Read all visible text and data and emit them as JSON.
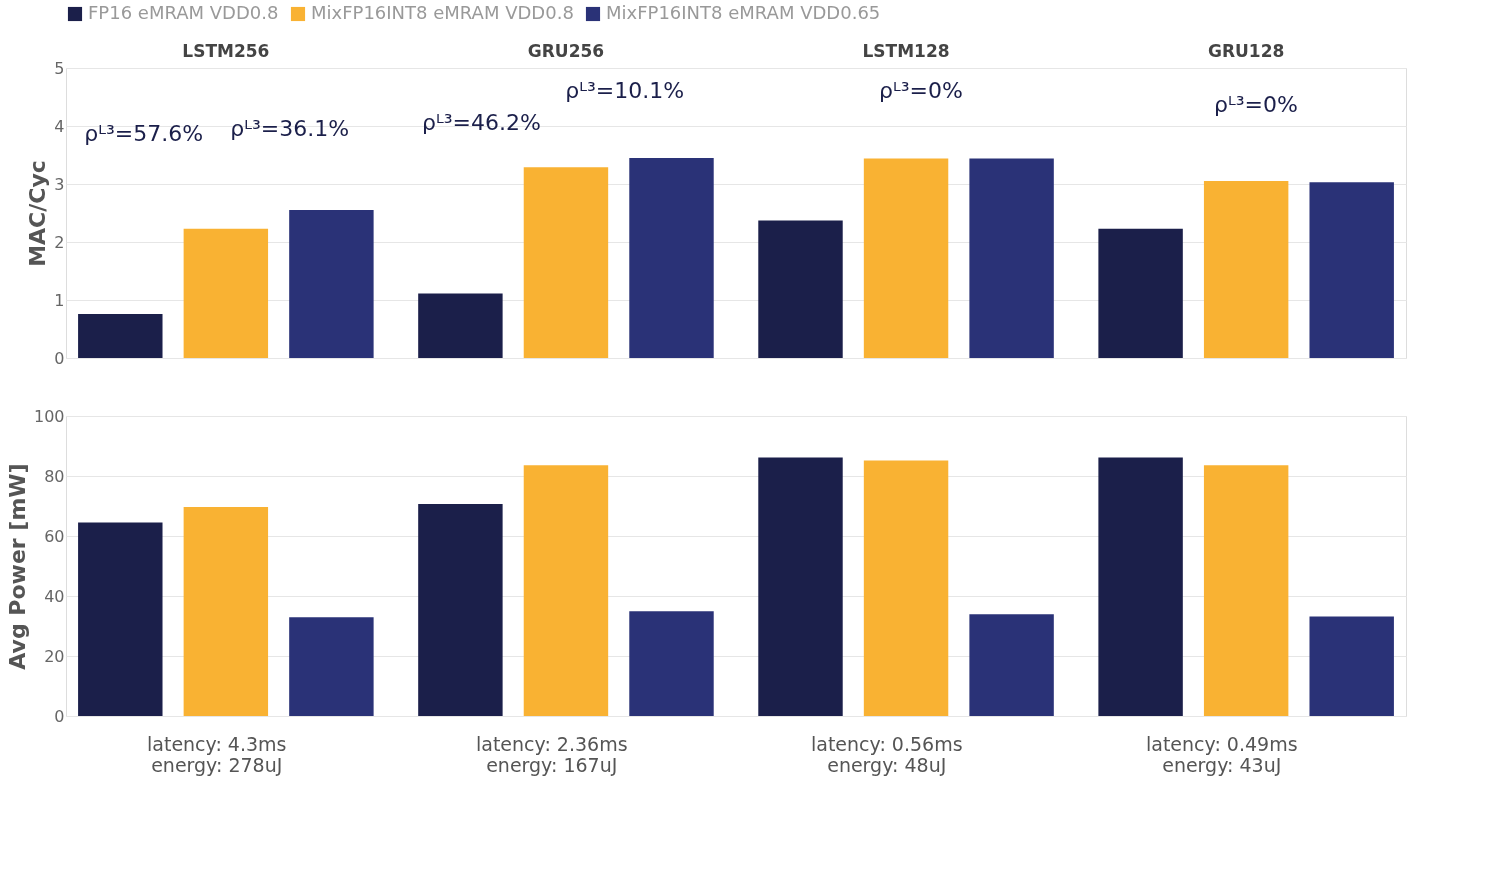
{
  "chart_data": [
    {
      "type": "bar",
      "ylabel": "MAC/Cyc",
      "categories": [
        "LSTM256",
        "GRU256",
        "LSTM128",
        "GRU128"
      ],
      "ylim": [
        0,
        5
      ],
      "yticks": [
        0,
        1,
        2,
        3,
        4,
        5
      ],
      "grid": "y",
      "legend": "top",
      "tick_labels": "xy",
      "series": [
        {
          "name": "FP16 eMRAM VDD0.8",
          "color": "#1b1f4a",
          "values": [
            0.76,
            1.11,
            2.37,
            2.23
          ]
        },
        {
          "name": "MixFP16INT8 eMRAM VDD0.8",
          "color": "#f9b233",
          "values": [
            2.23,
            3.29,
            3.44,
            3.05
          ]
        },
        {
          "name": "MixFP16INT8 eMRAM VDD0.65",
          "color": "#2a3277",
          "values": [
            2.55,
            3.45,
            3.44,
            3.03
          ]
        }
      ],
      "annotations": [
        "ρᴸ³=57.6%",
        "ρᴸ³=36.1%",
        "ρᴸ³=46.2%",
        "ρᴸ³=10.1%",
        "ρᴸ³=0%",
        "ρᴸ³=0%"
      ]
    },
    {
      "type": "bar",
      "ylabel": "Avg Power [mW]",
      "categories": [
        null,
        null,
        null,
        null
      ],
      "ylim": [
        0,
        100
      ],
      "yticks": [
        0,
        20,
        40,
        60,
        80,
        100
      ],
      "grid": "y",
      "tick_labels": "y",
      "series": [
        {
          "name": "FP16 eMRAM VDD0.8",
          "color": "#1b1f4a",
          "values": [
            64.5,
            70.7,
            86.2,
            86.2
          ]
        },
        {
          "name": "MixFP16INT8 eMRAM VDD0.8",
          "color": "#f9b233",
          "values": [
            69.7,
            83.6,
            85.2,
            83.6
          ]
        },
        {
          "name": "MixFP16INT8 eMRAM VDD0.65",
          "color": "#2a3277",
          "values": [
            32.9,
            34.9,
            33.9,
            33.2
          ]
        }
      ],
      "annotations": [
        "latency: 4.3ms\nenergy: 278uJ",
        "latency: 2.36ms\nenergy: 167uJ",
        "latency: 0.56ms\nenergy: 48uJ",
        "latency: 0.49ms\nenergy: 43uJ"
      ]
    }
  ]
}
